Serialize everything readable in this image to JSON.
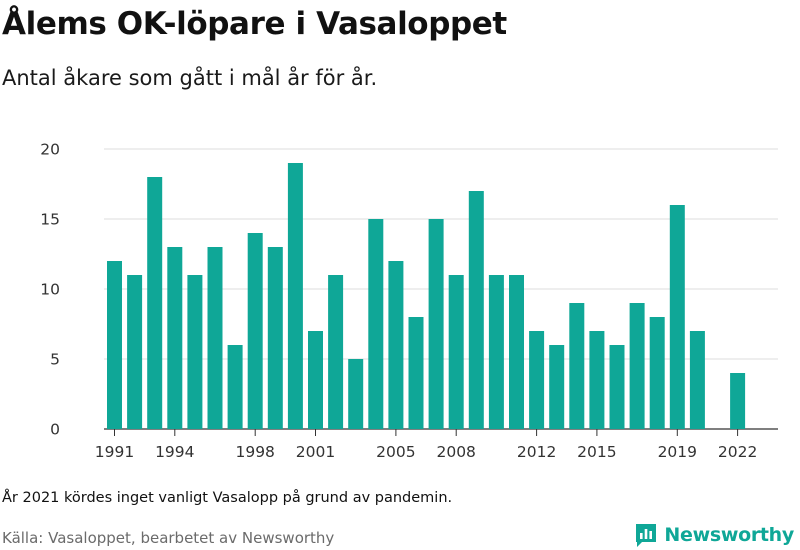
{
  "header": {
    "title": "Ålems OK-löpare i Vasaloppet",
    "subtitle": "Antal åkare som gått i mål år för år."
  },
  "footer": {
    "note": "År 2021 kördes inget vanligt Vasalopp på grund av pandemin.",
    "source": "Källa: Vasaloppet, bearbetet av Newsworthy",
    "brand": "Newsworthy",
    "brand_icon": "bar-chart-logo-icon"
  },
  "colors": {
    "bar": "#0fa797",
    "grid": "#dddddd",
    "axis": "#333333",
    "brand": "#0fa797"
  },
  "chart_data": {
    "type": "bar",
    "title": "Ålems OK-löpare i Vasaloppet",
    "subtitle": "Antal åkare som gått i mål år för år.",
    "categories": [
      1991,
      1992,
      1993,
      1994,
      1995,
      1996,
      1997,
      1998,
      1999,
      2000,
      2001,
      2002,
      2003,
      2004,
      2005,
      2006,
      2007,
      2008,
      2009,
      2010,
      2011,
      2012,
      2013,
      2014,
      2015,
      2016,
      2017,
      2018,
      2019,
      2020,
      2021,
      2022
    ],
    "values": [
      12,
      11,
      18,
      13,
      11,
      13,
      6,
      14,
      13,
      19,
      7,
      11,
      5,
      15,
      12,
      8,
      15,
      11,
      17,
      11,
      11,
      7,
      6,
      9,
      7,
      6,
      9,
      8,
      16,
      7,
      null,
      4
    ],
    "x_tick_labels": [
      "1991",
      "1994",
      "1998",
      "2001",
      "2005",
      "2008",
      "2012",
      "2015",
      "2019",
      "2022"
    ],
    "y_ticks": [
      0,
      5,
      10,
      15,
      20
    ],
    "ylim": [
      0,
      20
    ],
    "grid": true,
    "legend": "none"
  }
}
